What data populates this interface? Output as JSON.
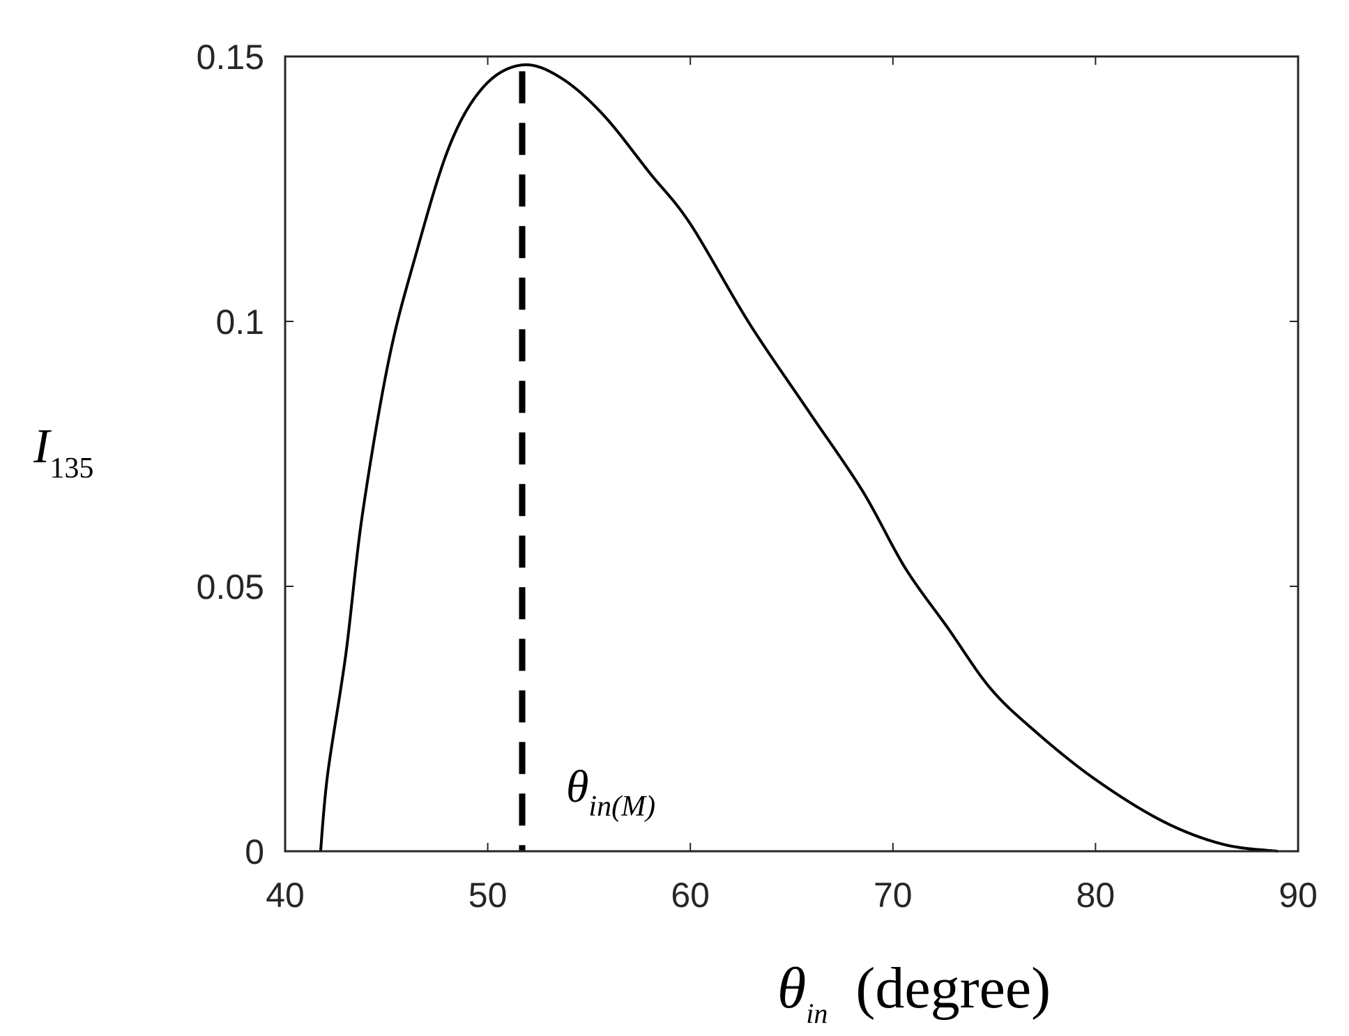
{
  "chart_data": {
    "type": "line",
    "title": "",
    "xlabel": {
      "symbol": "θ",
      "subscript": "in",
      "unit": "(degree)"
    },
    "ylabel": {
      "symbol": "I",
      "subscript": "135"
    },
    "xlim": [
      40,
      90
    ],
    "ylim": [
      0,
      0.15
    ],
    "xticks": [
      40,
      50,
      60,
      70,
      80,
      90
    ],
    "xtick_labels": [
      "40",
      "50",
      "60",
      "70",
      "80",
      "90"
    ],
    "yticks": [
      0,
      0.05,
      0.1,
      0.15
    ],
    "ytick_labels": [
      "0",
      "0.05",
      "0.1",
      "0.15"
    ],
    "grid": false,
    "line_color": "#000000",
    "series": [
      {
        "x": [
          41.75,
          42.1,
          43.0,
          43.8,
          45.1,
          46.4,
          48.1,
          49.8,
          51.7,
          53.6,
          55.7,
          58.0,
          60.0,
          62.9,
          65.9,
          68.5,
          70.6,
          72.7,
          74.8,
          77.0,
          79.9,
          83.3,
          86.3,
          89.0
        ],
        "y": [
          0,
          0.0146,
          0.0373,
          0.0632,
          0.0924,
          0.1119,
          0.133,
          0.1443,
          0.1484,
          0.146,
          0.139,
          0.128,
          0.1184,
          0.0997,
          0.0827,
          0.068,
          0.0535,
          0.0422,
          0.0308,
          0.0227,
          0.0138,
          0.0057,
          0.0013,
          0
        ]
      }
    ],
    "annotations": [
      {
        "type": "vline",
        "style": "dashed",
        "x": 51.7,
        "y_from": 0,
        "y_to": 0.148,
        "label_symbol": "θ",
        "label_subscript": "in(M)"
      }
    ]
  }
}
